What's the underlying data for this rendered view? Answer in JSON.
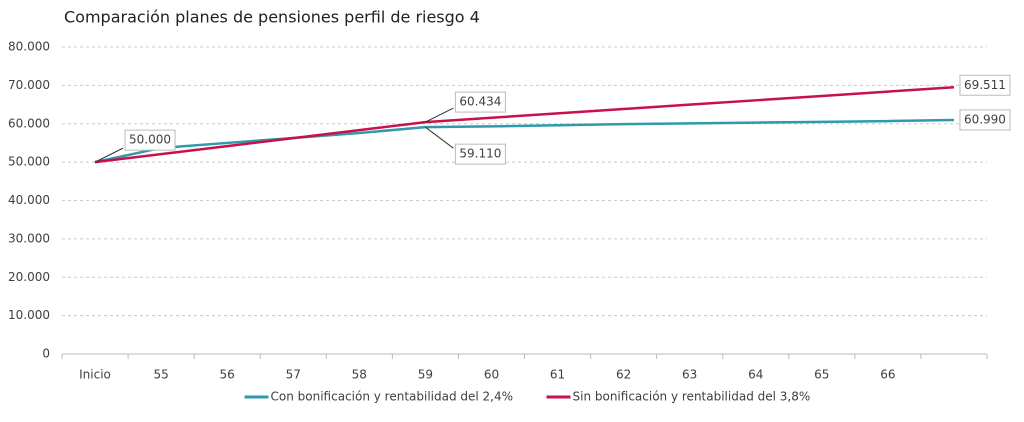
{
  "chart_data": {
    "type": "line",
    "title": "Comparación planes de pensiones perfil de riesgo 4",
    "categories": [
      "Inicio",
      "55",
      "56",
      "57",
      "58",
      "59",
      "60",
      "61",
      "62",
      "63",
      "64",
      "65",
      "66",
      null
    ],
    "series": [
      {
        "name": "Con bonificación y rentabilidad del 2,4%",
        "color": "#2e9aab",
        "values": [
          50000,
          53700,
          55000,
          56300,
          57600,
          59110,
          59300,
          59600,
          59900,
          60100,
          60300,
          60500,
          60700,
          60990
        ],
        "value_labels": [
          "50.000",
          null,
          null,
          null,
          null,
          "59.110",
          null,
          null,
          null,
          null,
          null,
          null,
          null,
          "60.990"
        ]
      },
      {
        "name": "Sin bonificación y rentabilidad del 3,8%",
        "color": "#c8104a",
        "values": [
          50000,
          52087,
          54174,
          56261,
          58347,
          60434,
          61569,
          62703,
          63838,
          64972,
          66107,
          67242,
          68376,
          69511
        ],
        "value_labels": [
          null,
          null,
          null,
          null,
          null,
          "60.434",
          null,
          null,
          null,
          null,
          null,
          null,
          null,
          "69.511"
        ]
      }
    ],
    "ylim": [
      0,
      80000
    ],
    "yticks": [
      0,
      {
        "value": 10000,
        "label": "10.000"
      },
      {
        "value": 20000,
        "label": "20.000"
      },
      {
        "value": 30000,
        "label": "30.000"
      },
      {
        "value": 40000,
        "label": "40.000"
      },
      {
        "value": 50000,
        "label": "50.000"
      },
      {
        "value": 60000,
        "label": "60.000"
      },
      {
        "value": 70000,
        "label": "70.000"
      },
      {
        "value": 80000,
        "label": "80.000"
      }
    ],
    "grid": true,
    "legend": "bottom"
  }
}
